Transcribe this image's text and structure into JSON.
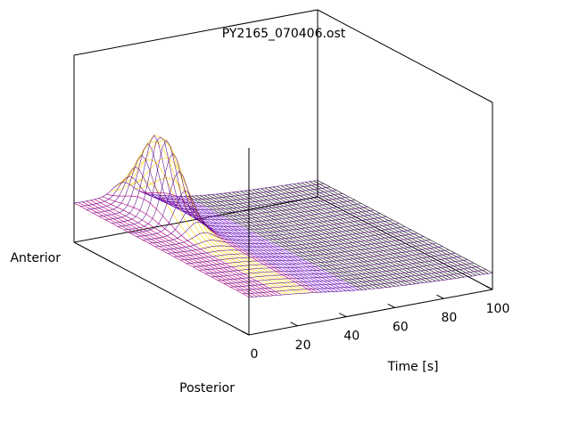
{
  "chart_data": {
    "type": "surface",
    "title": "PY2165_070406.ost",
    "xlabel": "Time [s]",
    "y_axis_labels": {
      "front": "Posterior",
      "back": "Anterior"
    },
    "x_ticks": [
      0,
      20,
      40,
      60,
      80,
      100
    ],
    "xlim": [
      0,
      100
    ],
    "grid": false,
    "peak": {
      "time": 20,
      "position": "Anterior"
    },
    "colors": {
      "low": "#6a00d8",
      "mid": "#b7007f",
      "high": "#ffd800",
      "box": "#000000",
      "background": "#ffffff"
    }
  }
}
